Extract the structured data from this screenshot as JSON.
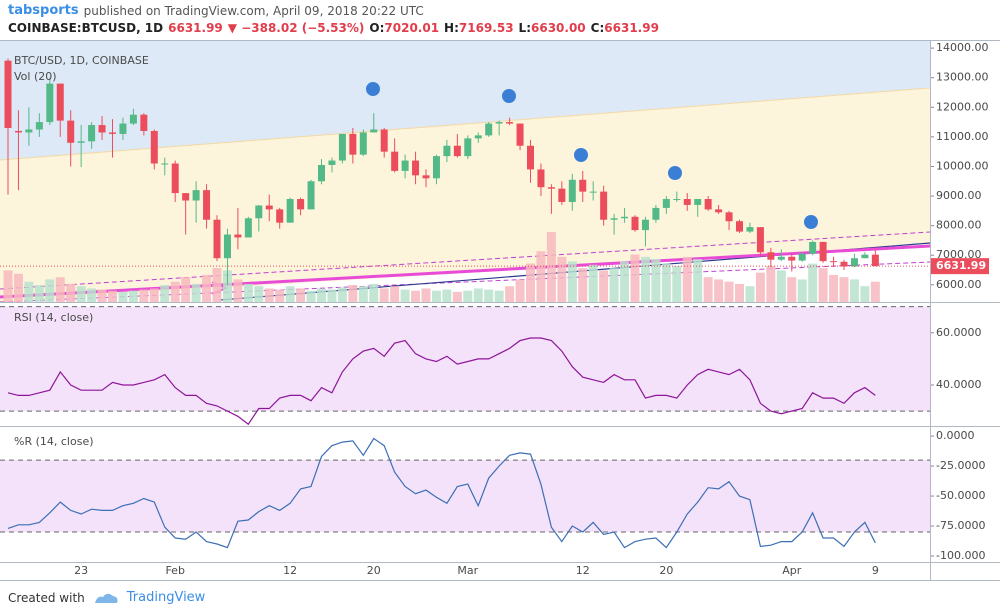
{
  "header": {
    "user": "tabsports",
    "published": "published on TradingView.com, April 09, 2018 20:22 UTC",
    "symbol": "COINBASE:BTCUSD, 1D",
    "last": "6631.99",
    "change": "▼ −388.02 (−5.53%)",
    "ohlc": [
      {
        "label": "O:",
        "value": "7020.01"
      },
      {
        "label": "H:",
        "value": "7169.53"
      },
      {
        "label": "L:",
        "value": "6630.00"
      },
      {
        "label": "C:",
        "value": "6631.99"
      }
    ]
  },
  "chart_data": [
    {
      "type": "candlestick",
      "title": "BTC/USD, 1D, COINBASE",
      "up_color": "#53b987",
      "down_color": "#eb4d5c",
      "categories": [
        null,
        null,
        null,
        null,
        null,
        null,
        null,
        "23",
        null,
        null,
        null,
        null,
        null,
        null,
        null,
        null,
        "Feb",
        null,
        null,
        null,
        null,
        null,
        null,
        null,
        null,
        null,
        null,
        "12",
        null,
        null,
        null,
        null,
        null,
        null,
        null,
        "20",
        null,
        null,
        null,
        null,
        null,
        null,
        null,
        null,
        "Mar",
        null,
        null,
        null,
        null,
        null,
        null,
        null,
        null,
        null,
        null,
        "12",
        null,
        null,
        null,
        null,
        null,
        null,
        null,
        "20",
        null,
        null,
        null,
        null,
        null,
        null,
        null,
        null,
        null,
        null,
        null,
        "Apr",
        null,
        null,
        null,
        null,
        null,
        null,
        null,
        "9"
      ],
      "open": [
        13575,
        11200,
        11150,
        11250,
        11500,
        12800,
        11550,
        10800,
        10850,
        11400,
        11150,
        11100,
        11450,
        11750,
        11200,
        10100,
        10100,
        9100,
        8850,
        9200,
        8200,
        6900,
        7700,
        7600,
        8250,
        8680,
        8550,
        8100,
        8900,
        8550,
        9500,
        10050,
        10200,
        11100,
        10400,
        11150,
        11250,
        10500,
        9850,
        10200,
        9700,
        9600,
        10350,
        10700,
        10350,
        10950,
        11050,
        11450,
        11500,
        11450,
        10700,
        9900,
        9300,
        9250,
        8800,
        9550,
        9150,
        9150,
        8200,
        8250,
        8300,
        7850,
        8200,
        8600,
        8900,
        8900,
        8700,
        8900,
        8550,
        8450,
        8150,
        7800,
        7950,
        7100,
        6850,
        6950,
        6820,
        7050,
        7450,
        6800,
        6780,
        6620,
        6900,
        7020.01
      ],
      "high": [
        13650,
        11900,
        12000,
        11800,
        13000,
        12800,
        11900,
        11400,
        11500,
        11700,
        11600,
        11650,
        11950,
        11800,
        11250,
        10300,
        10200,
        9100,
        9500,
        9400,
        8350,
        7900,
        8600,
        8300,
        8700,
        9050,
        8600,
        8950,
        8950,
        9550,
        10250,
        10300,
        11100,
        11300,
        11250,
        11800,
        11300,
        10950,
        10400,
        10500,
        9900,
        10400,
        10900,
        11100,
        11050,
        11150,
        11500,
        11550,
        11650,
        11450,
        10900,
        10100,
        9400,
        9500,
        9750,
        9850,
        9500,
        9350,
        8400,
        8600,
        8350,
        8300,
        8700,
        9000,
        9150,
        9100,
        8900,
        9000,
        8700,
        8500,
        8200,
        8100,
        7950,
        7250,
        7200,
        7050,
        7100,
        7500,
        7450,
        6950,
        6850,
        7050,
        7100,
        7169.53
      ],
      "low": [
        9050,
        9200,
        10700,
        11000,
        11400,
        11000,
        10000,
        9980,
        10600,
        10900,
        10300,
        10900,
        11400,
        11050,
        9900,
        9700,
        8800,
        7700,
        8100,
        7900,
        6800,
        6000,
        7200,
        7600,
        7800,
        8150,
        7900,
        8100,
        8350,
        8550,
        9400,
        9800,
        10100,
        10100,
        10350,
        11150,
        10300,
        9800,
        9600,
        9400,
        9300,
        9400,
        10150,
        10300,
        10250,
        10800,
        11000,
        11050,
        11400,
        10550,
        9450,
        9000,
        8400,
        8700,
        8500,
        8800,
        8850,
        8000,
        7700,
        8100,
        7800,
        7300,
        8100,
        8400,
        8800,
        8500,
        8300,
        8500,
        8400,
        7850,
        7750,
        7750,
        6950,
        6600,
        6800,
        6450,
        6780,
        7000,
        6750,
        6600,
        6500,
        6600,
        6900,
        6630
      ],
      "close": [
        11300,
        11150,
        11250,
        11500,
        12800,
        11550,
        10800,
        10850,
        11400,
        11150,
        11100,
        11450,
        11750,
        11200,
        10100,
        10100,
        9100,
        8850,
        9200,
        8200,
        6900,
        7700,
        7600,
        8250,
        8680,
        8550,
        8100,
        8900,
        8550,
        9500,
        10050,
        10200,
        11100,
        10400,
        11150,
        11250,
        10500,
        9850,
        10200,
        9700,
        9600,
        10350,
        10700,
        10350,
        10950,
        11050,
        11450,
        11500,
        11450,
        10700,
        9900,
        9300,
        9250,
        8800,
        9550,
        9150,
        9150,
        8200,
        8250,
        8300,
        7850,
        8200,
        8600,
        8900,
        8900,
        8700,
        8900,
        8550,
        8450,
        8150,
        7800,
        7950,
        7100,
        6850,
        6950,
        6820,
        7050,
        7450,
        6800,
        6780,
        6620,
        6900,
        7020,
        6631.99
      ],
      "ylim": [
        5420,
        14240
      ],
      "yticks": [
        {
          "value": 6000,
          "label": "6000.00"
        },
        {
          "value": 7000,
          "label": "7000.00"
        },
        {
          "value": 8000,
          "label": "8000.00"
        },
        {
          "value": 9000,
          "label": "9000.00"
        },
        {
          "value": 10000,
          "label": "10000.00"
        },
        {
          "value": 11000,
          "label": "11000.00"
        },
        {
          "value": 12000,
          "label": "12000.00"
        },
        {
          "value": 13000,
          "label": "13000.00"
        },
        {
          "value": 14000,
          "label": "14000.00"
        }
      ]
    },
    {
      "type": "bar",
      "title": "Vol (20)",
      "up_color": "#b9e0cc",
      "down_color": "#f7b9be",
      "values": [
        28,
        25,
        18,
        15,
        20,
        22,
        16,
        14,
        12,
        11,
        10,
        9,
        10,
        11,
        12,
        15,
        18,
        22,
        16,
        24,
        30,
        28,
        20,
        16,
        14,
        12,
        11,
        14,
        12,
        10,
        12,
        11,
        13,
        15,
        14,
        16,
        12,
        14,
        11,
        10,
        12,
        10,
        11,
        9,
        10,
        12,
        11,
        10,
        14,
        20,
        34,
        45,
        62,
        40,
        36,
        30,
        33,
        28,
        30,
        36,
        42,
        40,
        38,
        34,
        32,
        40,
        38,
        22,
        20,
        18,
        16,
        14,
        26,
        32,
        28,
        22,
        20,
        34,
        30,
        24,
        22,
        20,
        14,
        18
      ]
    },
    {
      "type": "line",
      "title": "RSI (14, close)",
      "color": "#8e1599",
      "band_color": "#f3e2fa",
      "values": [
        37,
        36,
        36,
        37,
        38,
        45,
        40,
        38,
        38,
        38,
        41,
        40,
        40,
        41,
        42,
        44,
        39,
        36,
        36,
        33,
        32,
        30,
        28,
        25,
        31,
        31,
        35,
        36,
        36,
        34,
        39,
        37,
        45,
        50,
        53,
        54,
        51,
        56,
        57,
        52,
        50,
        49,
        51,
        48,
        49,
        50,
        50,
        52,
        54,
        57,
        58,
        58,
        57,
        53,
        47,
        43,
        42,
        41,
        44,
        42,
        42,
        35,
        36,
        36,
        35,
        40,
        44,
        46,
        45,
        44,
        46,
        42,
        33,
        30,
        29,
        30,
        31,
        37,
        35,
        35,
        33,
        37,
        39,
        36
      ],
      "levels": [
        70,
        30
      ],
      "ylim": [
        24.3,
        71.4
      ],
      "yticks": [
        {
          "value": 40,
          "label": "40.0000"
        },
        {
          "value": 60,
          "label": "60.0000"
        }
      ]
    },
    {
      "type": "line",
      "title": "%R (14, close)",
      "color": "#3d6fb5",
      "band_color": "#f3e2fa",
      "values": [
        -77,
        -74,
        -74,
        -72,
        -64,
        -55,
        -62,
        -65,
        -61,
        -62,
        -62,
        -58,
        -56,
        -52,
        -55,
        -76,
        -85,
        -86,
        -80,
        -88,
        -90,
        -93,
        -71,
        -70,
        -63,
        -58,
        -62,
        -56,
        -44,
        -42,
        -17,
        -8,
        -5,
        -4,
        -16,
        -2,
        -8,
        -30,
        -42,
        -48,
        -45,
        -51,
        -56,
        -42,
        -40,
        -58,
        -35,
        -25,
        -16,
        -14,
        -15,
        -40,
        -76,
        -88,
        -75,
        -80,
        -72,
        -82,
        -80,
        -93,
        -88,
        -86,
        -85,
        -93,
        -80,
        -65,
        -55,
        -43,
        -44,
        -38,
        -50,
        -53,
        -92,
        -91,
        -88,
        -88,
        -80,
        -64,
        -85,
        -85,
        -92,
        -80,
        -72,
        -89
      ],
      "levels": [
        -20,
        -80
      ],
      "ylim": [
        -105,
        7.6
      ],
      "yticks": [
        {
          "value": 0,
          "label": "0.0000"
        },
        {
          "value": -25,
          "label": "-25.0000"
        },
        {
          "value": -50,
          "label": "-50.0000"
        },
        {
          "value": -75,
          "label": "-75.0000"
        },
        {
          "value": -100,
          "label": "-100.000"
        }
      ]
    }
  ],
  "footer": {
    "created": "Created with",
    "brand": "TradingView"
  }
}
